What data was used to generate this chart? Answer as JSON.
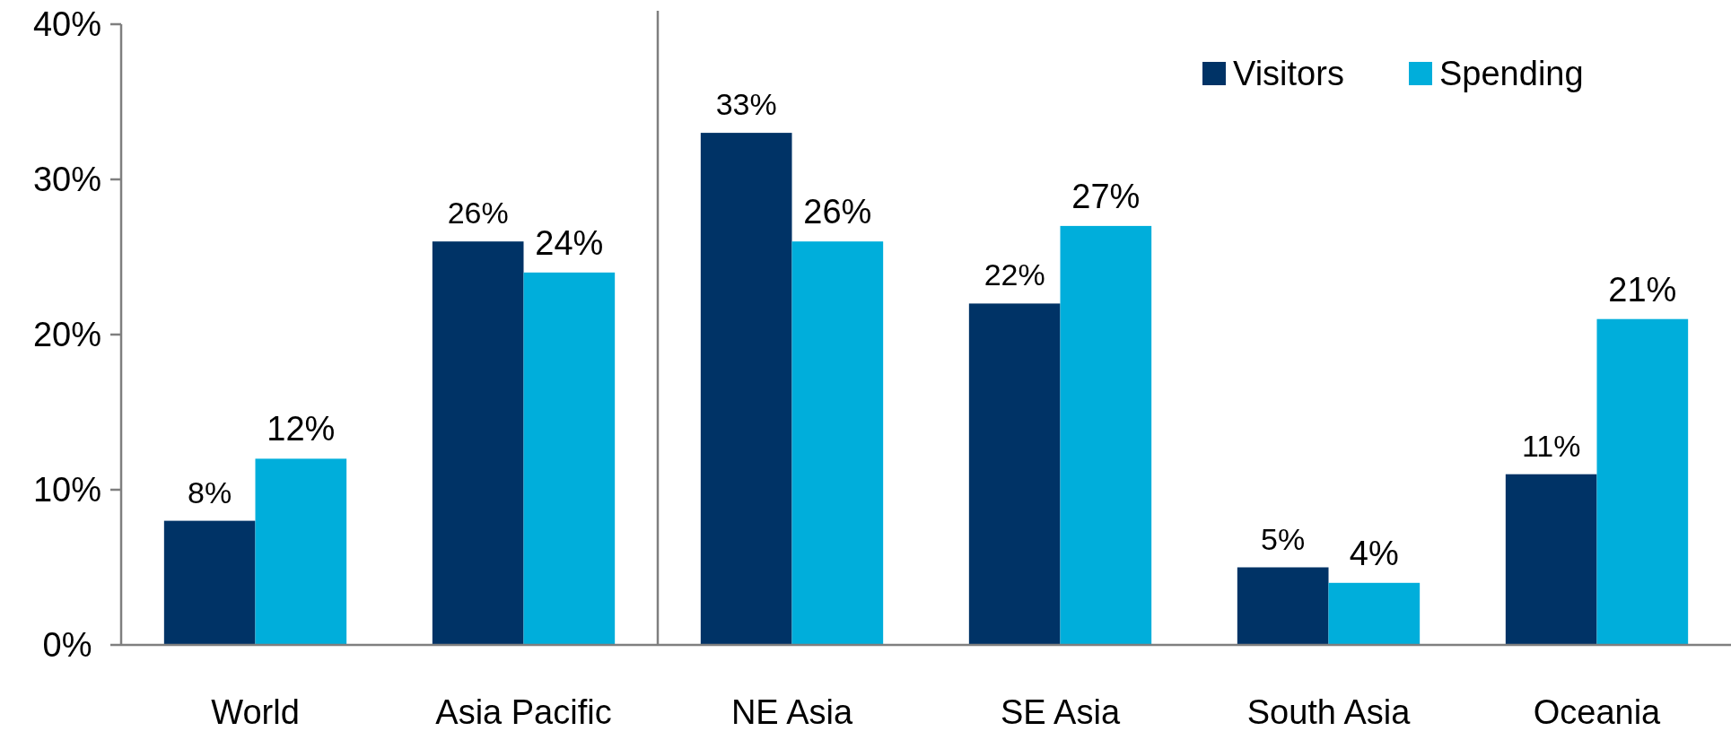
{
  "chart_data": {
    "type": "bar",
    "categories": [
      "World",
      "Asia Pacific",
      "NE Asia",
      "SE Asia",
      "South Asia",
      "Oceania"
    ],
    "series": [
      {
        "name": "Visitors",
        "color": "#003366",
        "values": [
          8,
          26,
          33,
          22,
          5,
          11
        ],
        "value_labels": [
          "8%",
          "26%",
          "33%",
          "22%",
          "5%",
          "11%"
        ]
      },
      {
        "name": "Spending",
        "color": "#00aedb",
        "values": [
          12,
          24,
          26,
          27,
          4,
          21
        ],
        "value_labels": [
          "12%",
          "24%",
          "26%",
          "27%",
          "4%",
          "21%"
        ]
      }
    ],
    "ylim": [
      0,
      40
    ],
    "yticks": [
      {
        "value": 0,
        "label": "0%"
      },
      {
        "value": 10,
        "label": "10%"
      },
      {
        "value": 20,
        "label": "20%"
      },
      {
        "value": 30,
        "label": "30%"
      },
      {
        "value": 40,
        "label": "40%"
      }
    ],
    "grid": false,
    "legend": "top right"
  }
}
